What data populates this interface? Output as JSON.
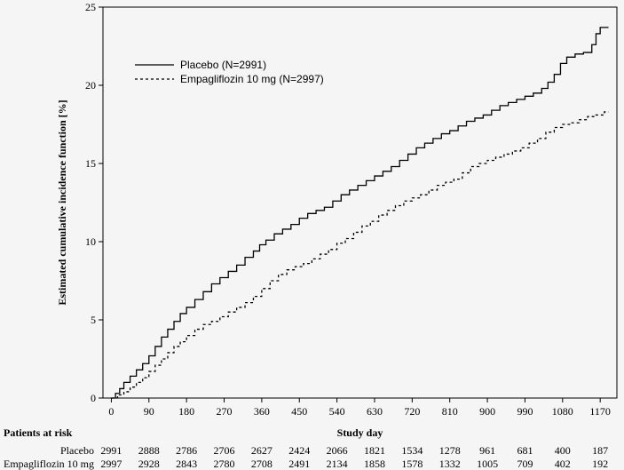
{
  "chart_data": {
    "type": "line",
    "step": true,
    "title": "",
    "xlabel": "Study day",
    "ylabel": "Estimated cumulative incidence function [%]",
    "xlim": [
      -20,
      1210
    ],
    "ylim": [
      0,
      25
    ],
    "x_ticks": [
      0,
      90,
      180,
      270,
      360,
      450,
      540,
      630,
      720,
      810,
      900,
      990,
      1080,
      1170
    ],
    "x_tick_labels": [
      "0",
      "90",
      "180",
      "270",
      "360",
      "450",
      "540",
      "630",
      "720",
      "810",
      "900",
      "990",
      "1080",
      "1170"
    ],
    "y_ticks": [
      0,
      5,
      10,
      15,
      20,
      25
    ],
    "y_tick_labels": [
      "0",
      "5",
      "10",
      "15",
      "20",
      "25"
    ],
    "legend_position": "upper-left",
    "series": [
      {
        "name": "Placebo (N=2991)",
        "style": "solid",
        "color": "#000000",
        "x": [
          0,
          10,
          20,
          30,
          45,
          60,
          75,
          90,
          105,
          120,
          135,
          150,
          165,
          180,
          200,
          220,
          240,
          260,
          280,
          300,
          320,
          340,
          355,
          370,
          390,
          410,
          430,
          450,
          470,
          490,
          510,
          530,
          550,
          570,
          590,
          610,
          630,
          650,
          670,
          690,
          710,
          730,
          750,
          770,
          790,
          810,
          830,
          850,
          870,
          890,
          910,
          930,
          950,
          970,
          990,
          1010,
          1030,
          1045,
          1060,
          1075,
          1090,
          1110,
          1130,
          1150,
          1160,
          1170,
          1190
        ],
        "y": [
          0,
          0.3,
          0.6,
          1.0,
          1.4,
          1.8,
          2.2,
          2.7,
          3.3,
          3.9,
          4.4,
          4.9,
          5.4,
          5.8,
          6.3,
          6.8,
          7.3,
          7.7,
          8.1,
          8.5,
          9.0,
          9.4,
          9.8,
          10.1,
          10.5,
          10.8,
          11.1,
          11.5,
          11.8,
          12.0,
          12.2,
          12.6,
          13.0,
          13.3,
          13.6,
          13.9,
          14.2,
          14.5,
          14.8,
          15.2,
          15.6,
          16.0,
          16.3,
          16.6,
          16.9,
          17.1,
          17.4,
          17.7,
          17.9,
          18.1,
          18.4,
          18.7,
          18.9,
          19.1,
          19.3,
          19.5,
          19.8,
          20.2,
          20.7,
          21.4,
          21.8,
          22.0,
          22.1,
          22.6,
          23.3,
          23.7,
          23.7
        ]
      },
      {
        "name": "Empagliflozin 10 mg (N=2997)",
        "style": "dashed",
        "color": "#000000",
        "x": [
          0,
          15,
          30,
          45,
          60,
          75,
          90,
          105,
          120,
          135,
          150,
          165,
          180,
          200,
          220,
          240,
          260,
          280,
          300,
          320,
          340,
          360,
          380,
          400,
          420,
          440,
          460,
          480,
          500,
          520,
          540,
          560,
          580,
          600,
          620,
          640,
          660,
          680,
          700,
          720,
          740,
          760,
          780,
          800,
          820,
          840,
          860,
          880,
          900,
          920,
          940,
          960,
          980,
          1000,
          1020,
          1040,
          1060,
          1080,
          1100,
          1120,
          1140,
          1160,
          1180,
          1190
        ],
        "y": [
          0,
          0.2,
          0.4,
          0.7,
          1.0,
          1.3,
          1.7,
          2.1,
          2.5,
          2.9,
          3.3,
          3.6,
          4.0,
          4.4,
          4.7,
          4.9,
          5.2,
          5.5,
          5.8,
          6.1,
          6.5,
          7.0,
          7.5,
          7.9,
          8.2,
          8.4,
          8.6,
          8.9,
          9.2,
          9.5,
          9.9,
          10.2,
          10.6,
          11.0,
          11.3,
          11.7,
          12.0,
          12.3,
          12.6,
          12.8,
          13.0,
          13.3,
          13.6,
          13.8,
          14.0,
          14.4,
          14.8,
          15.0,
          15.2,
          15.4,
          15.6,
          15.8,
          16.0,
          16.3,
          16.6,
          17.0,
          17.3,
          17.5,
          17.6,
          17.8,
          18.0,
          18.1,
          18.3,
          18.3
        ]
      }
    ],
    "risk_table": {
      "header": "Patients at risk",
      "rows": [
        {
          "label": "Placebo",
          "values": [
            "2991",
            "2888",
            "2786",
            "2706",
            "2627",
            "2424",
            "2066",
            "1821",
            "1534",
            "1278",
            "961",
            "681",
            "400",
            "187"
          ]
        },
        {
          "label": "Empagliflozin 10 mg",
          "values": [
            "2997",
            "2928",
            "2843",
            "2780",
            "2708",
            "2491",
            "2134",
            "1858",
            "1578",
            "1332",
            "1005",
            "709",
            "402",
            "192"
          ]
        }
      ]
    }
  }
}
